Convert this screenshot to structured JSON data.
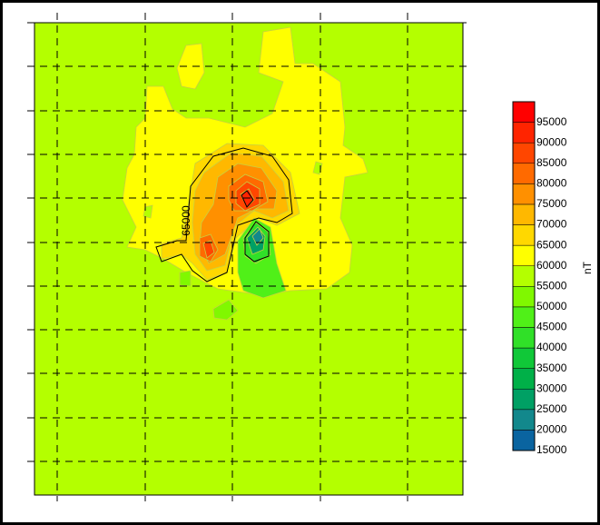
{
  "chart_data": {
    "type": "contour",
    "colorbar": {
      "label": "nT",
      "levels": [
        15000,
        20000,
        25000,
        30000,
        35000,
        40000,
        45000,
        50000,
        55000,
        60000,
        65000,
        70000,
        75000,
        80000,
        85000,
        90000,
        95000
      ],
      "colors": [
        "#0a64a0",
        "#12888c",
        "#00a064",
        "#00b048",
        "#10c838",
        "#30e028",
        "#50f018",
        "#80f800",
        "#b4ff00",
        "#ffff00",
        "#ffd800",
        "#ffb800",
        "#ff9000",
        "#ff6a00",
        "#ff4600",
        "#ff2400",
        "#ff0000"
      ]
    },
    "contour_labels": [
      65000
    ]
  }
}
